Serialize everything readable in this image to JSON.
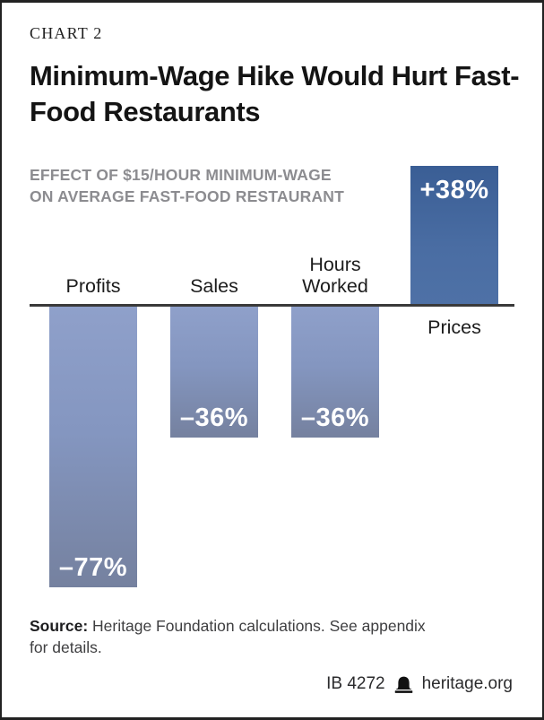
{
  "kicker": "CHART 2",
  "title": "Minimum-Wage Hike Would Hurt Fast-Food Restaurants",
  "subtitle": {
    "line1": "EFFECT OF $15/HOUR MINIMUM-WAGE",
    "line2": "ON AVERAGE FAST-FOOD RESTAURANT"
  },
  "chart_data": {
    "type": "bar",
    "title": "Minimum-Wage Hike Would Hurt Fast-Food Restaurants",
    "subtitle": "EFFECT OF $15/HOUR MINIMUM-WAGE ON AVERAGE FAST-FOOD RESTAURANT",
    "categories": [
      "Profits",
      "Sales",
      "Hours Worked",
      "Prices"
    ],
    "values": [
      -77,
      -36,
      -36,
      38
    ],
    "value_labels": [
      "–77%",
      "–36%",
      "–36%",
      "+38%"
    ],
    "unit": "percent change",
    "ylim": [
      -80,
      40
    ],
    "grid": false,
    "legend": "none",
    "baseline": 0,
    "colors": {
      "positive_bar": "#46699f",
      "negative_bar": "#8496c0",
      "axis_line": "#3a3a3a",
      "value_label_text": "#ffffff"
    }
  },
  "source": {
    "label": "Source:",
    "line1": "Heritage Foundation calculations. See appendix",
    "line2": "for details."
  },
  "footer": {
    "doc_id": "IB 4272",
    "site": "heritage.org",
    "logo": "heritage-bell-icon"
  }
}
